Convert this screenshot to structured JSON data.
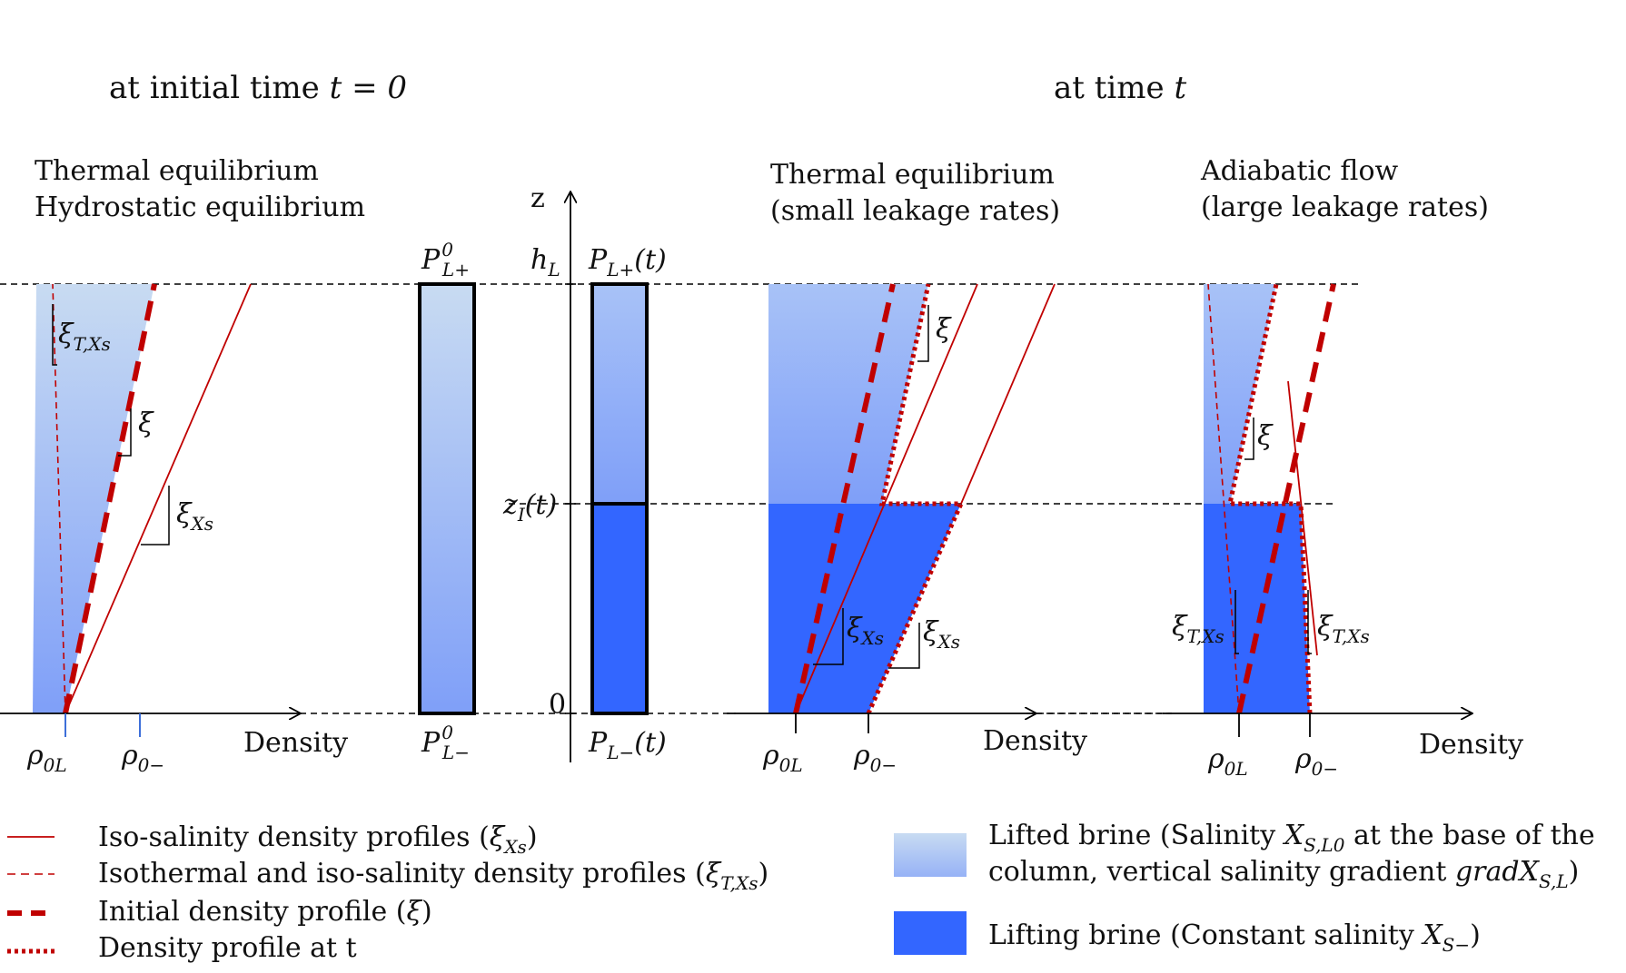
{
  "headers": {
    "initial": {
      "text": "at initial time ",
      "var": "t = 0"
    },
    "at_time": {
      "text": "at time ",
      "var": "t"
    }
  },
  "captions": {
    "left": {
      "line1": "Thermal equilibrium",
      "line2": "Hydrostatic equilibrium"
    },
    "middle": {
      "line1": "Thermal equilibrium",
      "line2": "(small leakage rates)"
    },
    "right": {
      "line1": "Adiabatic flow",
      "line2": "(large leakage rates)"
    }
  },
  "axes": {
    "z_label": "z",
    "h_label": "h",
    "h_sub": "L",
    "zi_label": "z",
    "zi_sub": "I",
    "zi_suffix": "(t)",
    "zero_label": "0",
    "density_label": "Density"
  },
  "pressures": {
    "p0_top": {
      "main": "P",
      "sup": "0",
      "sub": "L+"
    },
    "p0_bot": {
      "main": "P",
      "sup": "0",
      "sub": "L−"
    },
    "pt_top": {
      "main": "P",
      "sub": "L+",
      "suffix": "(t)"
    },
    "pt_bot": {
      "main": "P",
      "sub": "L−",
      "suffix": "(t)"
    }
  },
  "rho": {
    "rho0L": {
      "main": "ρ",
      "sub": "0L"
    },
    "rho0m": {
      "main": "ρ",
      "sub": "0−"
    }
  },
  "slopes": {
    "xi": "ξ",
    "xi_xs": {
      "main": "ξ",
      "sub": "Xs"
    },
    "xi_txs": {
      "main": "ξ",
      "sub": "T,Xs"
    }
  },
  "legend": {
    "solid": {
      "text": "Iso-salinity density profiles (",
      "sym": "ξ",
      "sub": "Xs",
      "end": ")"
    },
    "thin_dash": {
      "text": "Isothermal and iso-salinity density profiles (",
      "sym": "ξ",
      "sub": "T,Xs",
      "end": ")"
    },
    "thick_dash": {
      "text": "Initial density profile (",
      "sym": "ξ",
      "end": ")"
    },
    "dotted": {
      "text": "Density profile at t"
    },
    "lifted": {
      "line1": "Lifted brine (Salinity ",
      "sym1": "X",
      "sub1": "S,L0",
      "line1_end": " at the base of the",
      "line2": "column, vertical salinity gradient ",
      "sym2": "gradX",
      "sub2": "S,L",
      "line2_end": ")"
    },
    "lifting": {
      "text": "Lifting brine (Constant salinity ",
      "sym": "X",
      "sub": "S−",
      "end": ")"
    }
  },
  "colors": {
    "red": "#c00000",
    "lifted_top": "#c8dbf2",
    "lifted_bottom": "#7f9ff8",
    "lifting": "#3366ff"
  }
}
